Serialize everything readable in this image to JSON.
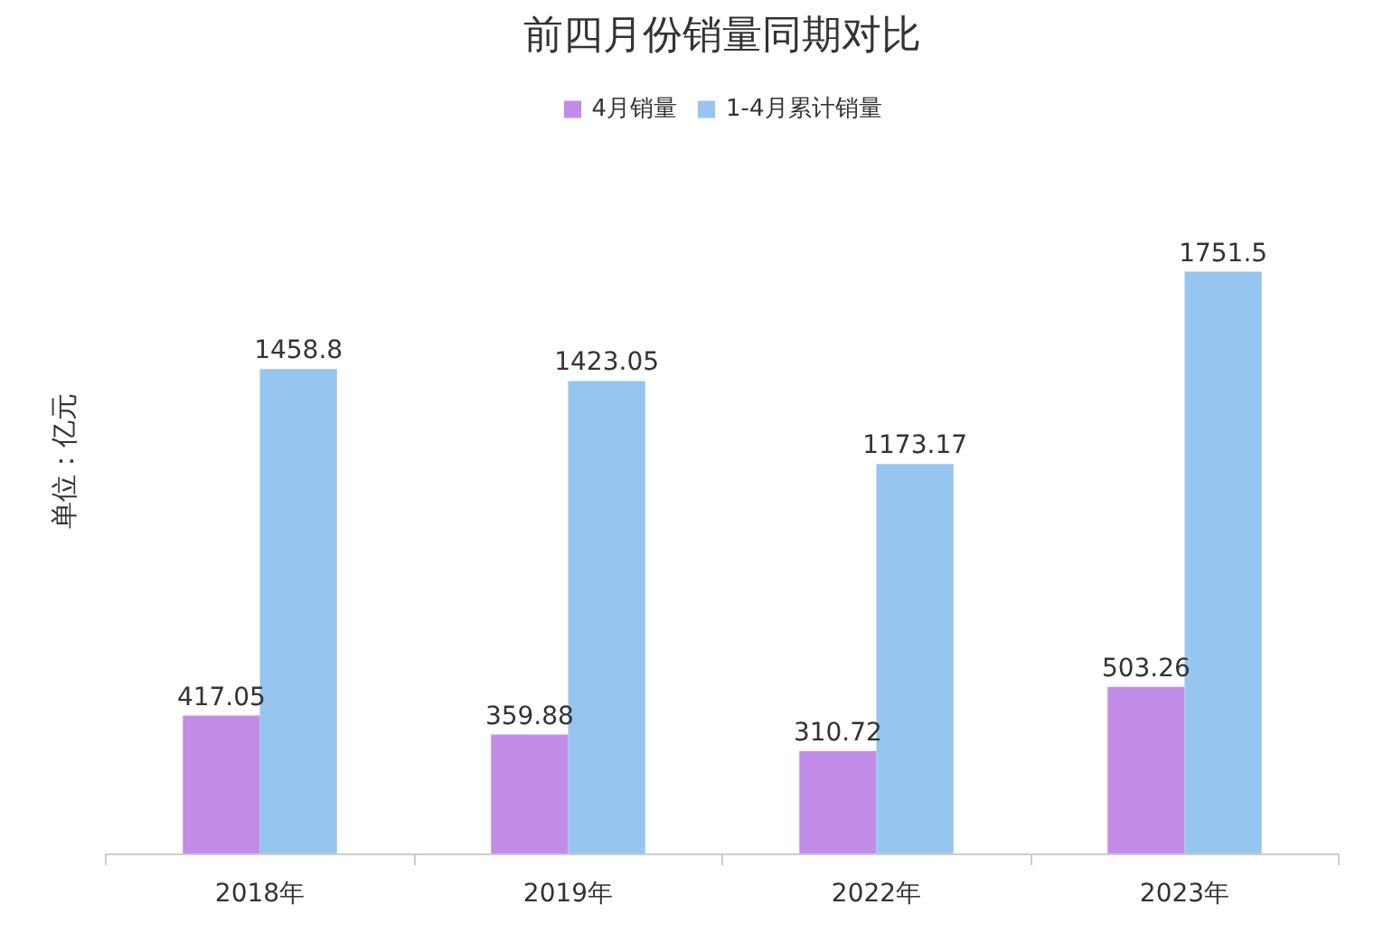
{
  "chart_data": {
    "type": "bar",
    "title": "前四月份销量同期对比",
    "ylabel": "单位：亿元",
    "categories": [
      "2018年",
      "2019年",
      "2022年",
      "2023年"
    ],
    "series": [
      {
        "name": "4月销量",
        "color": "#c38ce8",
        "values": [
          417.05,
          359.88,
          310.72,
          503.26
        ]
      },
      {
        "name": "1-4月累计销量",
        "color": "#96c5ef",
        "values": [
          1458.8,
          1423.05,
          1173.17,
          1751.5
        ]
      }
    ],
    "data_labels": true,
    "legend": "top",
    "grid": false
  }
}
